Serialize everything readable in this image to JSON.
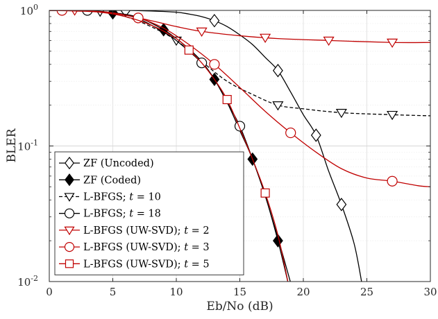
{
  "chart_data": {
    "type": "line",
    "title": "",
    "xlabel": "Eb/No (dB)",
    "ylabel": "BLER",
    "xlim": [
      0,
      30
    ],
    "ylim": [
      0.01,
      1
    ],
    "yscale": "log",
    "grid": true,
    "legend_position": "bottom-left",
    "xticks": [
      0,
      5,
      10,
      15,
      20,
      25,
      30
    ],
    "yticks": [
      {
        "value": 1,
        "base": "10",
        "exp": "0"
      },
      {
        "value": 0.1,
        "base": "10",
        "exp": "-1"
      },
      {
        "value": 0.01,
        "base": "10",
        "exp": "-2"
      }
    ],
    "series": [
      {
        "name": "ZF (Uncoded)",
        "label_main": "ZF (Uncoded)",
        "color": "#000000",
        "dash": "solid",
        "marker": "diamond",
        "filled": false,
        "curve": [
          [
            0,
            1
          ],
          [
            4,
            1
          ],
          [
            6,
            1
          ],
          [
            8,
            0.99
          ],
          [
            10,
            0.97
          ],
          [
            11,
            0.94
          ],
          [
            12,
            0.9
          ],
          [
            13,
            0.84
          ],
          [
            14,
            0.76
          ],
          [
            15,
            0.66
          ],
          [
            16,
            0.56
          ],
          [
            17,
            0.45
          ],
          [
            18,
            0.36
          ],
          [
            19,
            0.25
          ],
          [
            20,
            0.17
          ],
          [
            21,
            0.12
          ],
          [
            22,
            0.065
          ],
          [
            23,
            0.037
          ],
          [
            24,
            0.019
          ],
          [
            24.6,
            0.0098
          ]
        ],
        "markers": [
          [
            6,
            1
          ],
          [
            13,
            0.84
          ],
          [
            18,
            0.36
          ],
          [
            21,
            0.12
          ],
          [
            23,
            0.037
          ]
        ]
      },
      {
        "name": "ZF (Coded)",
        "label_main": "ZF (Coded)",
        "color": "#000000",
        "dash": "solid",
        "marker": "diamond",
        "filled": true,
        "curve": [
          [
            0,
            1
          ],
          [
            3,
            0.99
          ],
          [
            5,
            0.96
          ],
          [
            7,
            0.89
          ],
          [
            9,
            0.72
          ],
          [
            10,
            0.62
          ],
          [
            11,
            0.52
          ],
          [
            12,
            0.42
          ],
          [
            13,
            0.31
          ],
          [
            14,
            0.21
          ],
          [
            15,
            0.13
          ],
          [
            16,
            0.08
          ],
          [
            17,
            0.043
          ],
          [
            18,
            0.02
          ],
          [
            18.8,
            0.0098
          ]
        ],
        "markers": [
          [
            5,
            0.96
          ],
          [
            9,
            0.72
          ],
          [
            13,
            0.31
          ],
          [
            16,
            0.08
          ],
          [
            18,
            0.02
          ]
        ]
      },
      {
        "name": "L-BFGS; t = 10",
        "label_main": "L-BFGS; ",
        "label_var": "t",
        "label_tail": " = 10",
        "color": "#000000",
        "dash": "dashed",
        "marker": "triangle-down",
        "filled": false,
        "curve": [
          [
            0,
            1
          ],
          [
            2,
            1
          ],
          [
            4,
            0.98
          ],
          [
            6,
            0.9
          ],
          [
            8,
            0.76
          ],
          [
            10,
            0.6
          ],
          [
            12,
            0.42
          ],
          [
            14,
            0.3
          ],
          [
            16,
            0.24
          ],
          [
            18,
            0.2
          ],
          [
            20,
            0.188
          ],
          [
            23,
            0.176
          ],
          [
            27,
            0.17
          ],
          [
            30,
            0.167
          ]
        ],
        "markers": [
          [
            4,
            0.98
          ],
          [
            10,
            0.6
          ],
          [
            18,
            0.2
          ],
          [
            23,
            0.176
          ],
          [
            27,
            0.17
          ]
        ]
      },
      {
        "name": "L-BFGS; t = 18",
        "label_main": "L-BFGS; ",
        "label_var": "t",
        "label_tail": " = 18",
        "color": "#000000",
        "dash": "solid",
        "marker": "circle",
        "filled": false,
        "curve": [
          [
            0,
            1
          ],
          [
            2,
            1
          ],
          [
            3,
            1
          ],
          [
            5,
            0.96
          ],
          [
            7,
            0.87
          ],
          [
            9,
            0.69
          ],
          [
            10,
            0.6
          ],
          [
            12,
            0.41
          ],
          [
            13,
            0.31
          ],
          [
            14,
            0.21
          ],
          [
            15,
            0.14
          ],
          [
            16,
            0.08
          ],
          [
            17,
            0.043
          ],
          [
            18,
            0.021
          ],
          [
            19,
            0.0098
          ]
        ],
        "markers": [
          [
            3,
            1
          ],
          [
            12,
            0.41
          ],
          [
            15,
            0.14
          ]
        ]
      },
      {
        "name": "L-BFGS (UW-SVD); t = 2",
        "label_main": "L-BFGS (UW-SVD); ",
        "label_var": "t",
        "label_tail": " = 2",
        "color": "#c00000",
        "dash": "solid",
        "marker": "triangle-down",
        "filled": false,
        "curve": [
          [
            0,
            1
          ],
          [
            2,
            1
          ],
          [
            5,
            0.96
          ],
          [
            8,
            0.84
          ],
          [
            10,
            0.76
          ],
          [
            12,
            0.7
          ],
          [
            15,
            0.65
          ],
          [
            18,
            0.62
          ],
          [
            22,
            0.6
          ],
          [
            27,
            0.58
          ],
          [
            30,
            0.58
          ]
        ],
        "markers": [
          [
            2,
            1
          ],
          [
            12,
            0.7
          ],
          [
            17,
            0.63
          ],
          [
            22,
            0.6
          ],
          [
            27,
            0.58
          ]
        ]
      },
      {
        "name": "L-BFGS (UW-SVD); t = 3",
        "label_main": "L-BFGS (UW-SVD); ",
        "label_var": "t",
        "label_tail": " = 3",
        "color": "#c00000",
        "dash": "solid",
        "marker": "circle",
        "filled": false,
        "curve": [
          [
            0,
            1
          ],
          [
            1,
            1
          ],
          [
            3,
            0.99
          ],
          [
            5,
            0.95
          ],
          [
            7,
            0.88
          ],
          [
            9,
            0.74
          ],
          [
            11,
            0.56
          ],
          [
            13,
            0.4
          ],
          [
            15,
            0.27
          ],
          [
            17,
            0.18
          ],
          [
            19,
            0.125
          ],
          [
            21,
            0.09
          ],
          [
            23,
            0.068
          ],
          [
            25,
            0.058
          ],
          [
            27,
            0.055
          ],
          [
            29,
            0.051
          ],
          [
            30,
            0.05
          ]
        ],
        "markers": [
          [
            1,
            1
          ],
          [
            7,
            0.88
          ],
          [
            13,
            0.4
          ],
          [
            19,
            0.125
          ],
          [
            27,
            0.055
          ]
        ]
      },
      {
        "name": "L-BFGS (UW-SVD); t = 5",
        "label_main": "L-BFGS (UW-SVD); ",
        "label_var": "t",
        "label_tail": " = 5",
        "color": "#c00000",
        "dash": "solid",
        "marker": "square",
        "filled": false,
        "curve": [
          [
            0,
            1
          ],
          [
            2,
            0.99
          ],
          [
            4,
            0.97
          ],
          [
            6,
            0.9
          ],
          [
            8,
            0.78
          ],
          [
            10,
            0.62
          ],
          [
            11,
            0.51
          ],
          [
            12,
            0.41
          ],
          [
            13,
            0.31
          ],
          [
            14,
            0.22
          ],
          [
            15,
            0.135
          ],
          [
            16,
            0.08
          ],
          [
            17,
            0.045
          ],
          [
            18,
            0.022
          ],
          [
            18.8,
            0.0098
          ]
        ],
        "markers": [
          [
            11,
            0.51
          ],
          [
            14,
            0.22
          ],
          [
            17,
            0.045
          ]
        ]
      }
    ]
  }
}
